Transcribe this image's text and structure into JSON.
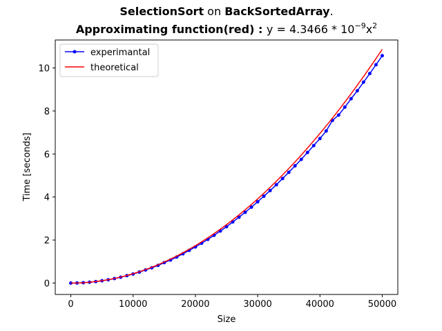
{
  "chart_data": {
    "type": "line",
    "title_line1": {
      "algorithm": "SelectionSort",
      "on_word": " on ",
      "dataset": "BackSortedArray",
      "suffix": "."
    },
    "title_line2": {
      "label": "Approximating function(red) : ",
      "formula_prefix": "y = 4.3466 * 10",
      "exponent": "−9",
      "variable": "x",
      "power": "2"
    },
    "xlabel": "Size",
    "ylabel": "Time [seconds]",
    "xlim": [
      -2500,
      52500
    ],
    "ylim": [
      -0.53,
      11.3
    ],
    "xticks": [
      0,
      10000,
      20000,
      30000,
      40000,
      50000
    ],
    "xtick_labels": [
      "0",
      "10000",
      "20000",
      "30000",
      "40000",
      "50000"
    ],
    "yticks": [
      0,
      2,
      4,
      6,
      8,
      10
    ],
    "ytick_labels": [
      "0",
      "2",
      "4",
      "6",
      "8",
      "10"
    ],
    "legend_position": "upper-left",
    "series": [
      {
        "name": "experimantal",
        "color": "#0000ff",
        "marker": "dot",
        "x": [
          0,
          1000,
          2000,
          3000,
          4000,
          5000,
          6000,
          7000,
          8000,
          9000,
          10000,
          11000,
          12000,
          13000,
          14000,
          15000,
          16000,
          17000,
          18000,
          19000,
          20000,
          21000,
          22000,
          23000,
          24000,
          25000,
          26000,
          27000,
          28000,
          29000,
          30000,
          31000,
          32000,
          33000,
          34000,
          35000,
          36000,
          37000,
          38000,
          39000,
          40000,
          41000,
          42000,
          43000,
          44000,
          45000,
          46000,
          47000,
          48000,
          49000,
          50000
        ],
        "y": [
          0.0,
          0.004,
          0.017,
          0.038,
          0.068,
          0.106,
          0.152,
          0.207,
          0.271,
          0.343,
          0.42,
          0.51,
          0.61,
          0.71,
          0.82,
          0.95,
          1.07,
          1.21,
          1.36,
          1.52,
          1.68,
          1.85,
          2.03,
          2.22,
          2.42,
          2.62,
          2.84,
          3.06,
          3.29,
          3.53,
          3.78,
          4.04,
          4.3,
          4.57,
          4.86,
          5.15,
          5.45,
          5.75,
          6.07,
          6.39,
          6.72,
          7.07,
          7.56,
          7.81,
          8.18,
          8.57,
          8.94,
          9.34,
          9.74,
          10.15,
          10.57
        ]
      },
      {
        "name": "theoretical",
        "color": "#ff0000",
        "marker": "none",
        "x": [
          0,
          1000,
          2000,
          3000,
          4000,
          5000,
          6000,
          7000,
          8000,
          9000,
          10000,
          11000,
          12000,
          13000,
          14000,
          15000,
          16000,
          17000,
          18000,
          19000,
          20000,
          21000,
          22000,
          23000,
          24000,
          25000,
          26000,
          27000,
          28000,
          29000,
          30000,
          31000,
          32000,
          33000,
          34000,
          35000,
          36000,
          37000,
          38000,
          39000,
          40000,
          41000,
          42000,
          43000,
          44000,
          45000,
          46000,
          47000,
          48000,
          49000,
          50000
        ],
        "y": [
          0.0,
          0.004,
          0.017,
          0.039,
          0.07,
          0.109,
          0.156,
          0.213,
          0.278,
          0.352,
          0.435,
          0.526,
          0.626,
          0.735,
          0.852,
          0.978,
          1.113,
          1.256,
          1.408,
          1.569,
          1.739,
          1.917,
          2.104,
          2.299,
          2.504,
          2.717,
          2.938,
          3.169,
          3.408,
          3.656,
          3.912,
          4.177,
          4.451,
          4.734,
          5.025,
          5.325,
          5.633,
          5.951,
          6.277,
          6.611,
          6.955,
          7.307,
          7.667,
          8.037,
          8.415,
          8.802,
          9.197,
          9.602,
          10.015,
          10.436,
          10.867
        ]
      }
    ]
  }
}
